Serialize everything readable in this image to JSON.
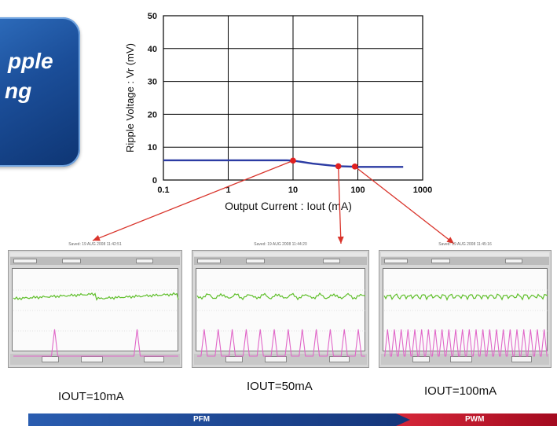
{
  "badge": {
    "line1": "pple",
    "line2": "ng"
  },
  "chart_data": {
    "type": "line",
    "xscale": "log",
    "xlim": [
      0.1,
      1000
    ],
    "ylim": [
      0,
      50
    ],
    "xticks": [
      "0.1",
      "1",
      "10",
      "100",
      "1000"
    ],
    "yticks": [
      "0",
      "10",
      "20",
      "30",
      "40",
      "50"
    ],
    "xlabel": "Output Current : Iout (mA)",
    "ylabel": "Ripple Voltage : Vr (mV)",
    "grid": true,
    "series": [
      {
        "x": [
          0.1,
          1,
          3,
          8,
          10,
          20,
          35,
          50,
          80,
          100,
          200,
          500
        ],
        "y": [
          6,
          6,
          6,
          6,
          5.9,
          5,
          4.5,
          4.2,
          4.1,
          4,
          4,
          4
        ],
        "color": "#2b3ba3"
      }
    ],
    "markers": [
      {
        "x": 10,
        "y": 5.9
      },
      {
        "x": 50,
        "y": 4.2
      },
      {
        "x": 90,
        "y": 4.1
      }
    ],
    "marker_color": "#e02020"
  },
  "scopes": [
    {
      "timestamp": "Saved: 19 AUG 2008 11:42:51",
      "caption": "IOUT=10mA",
      "pulse_count": 2
    },
    {
      "timestamp": "Saved: 19 AUG 2008 11:44:20",
      "caption": "IOUT=50mA",
      "pulse_count": 12
    },
    {
      "timestamp": "Saved: 19 AUG 2008 11:45:16",
      "caption": "IOUT=100mA",
      "pulse_count": 24
    }
  ],
  "mode_bar": {
    "pfm": "PFM",
    "pwm": "PWM",
    "pfm_color": "#1a3f8f",
    "pwm_color": "#c8102e"
  }
}
